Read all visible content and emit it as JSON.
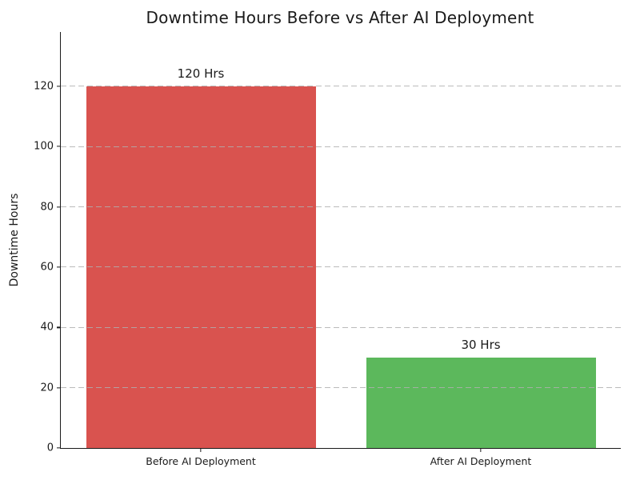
{
  "chart_data": {
    "type": "bar",
    "title": "Downtime Hours Before vs After AI Deployment",
    "xlabel": "",
    "ylabel": "Downtime Hours",
    "categories": [
      "Before AI Deployment",
      "After AI Deployment"
    ],
    "values": [
      120,
      30
    ],
    "value_labels": [
      "120 Hrs",
      "30 Hrs"
    ],
    "bar_colors": [
      "#d9534f",
      "#5cb85c"
    ],
    "yticks": [
      0,
      20,
      40,
      60,
      80,
      100,
      120
    ],
    "ylim": [
      0,
      138
    ],
    "grid": "horizontal-dashed",
    "gridline_color": "#b0b0b0",
    "legend": "none",
    "background_color": "#ffffff",
    "text_color": "#1a1a1a"
  }
}
